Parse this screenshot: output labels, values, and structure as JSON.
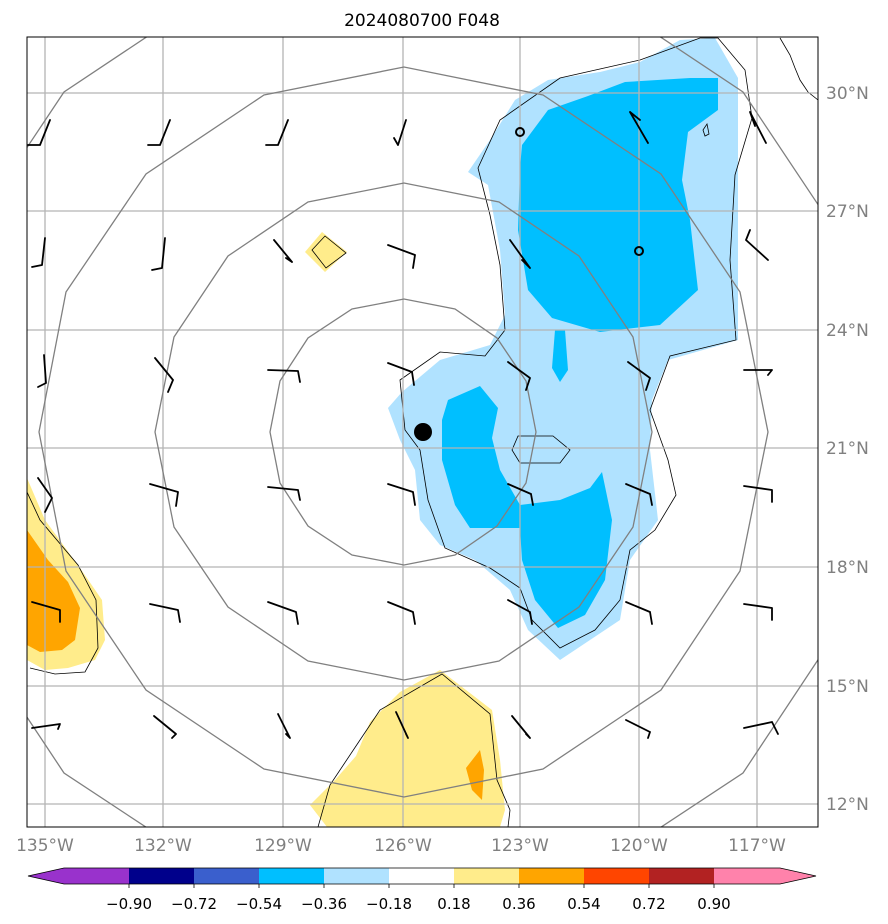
{
  "title": "2024080700 F048",
  "map": {
    "lon_labels": [
      "135°W",
      "132°W",
      "129°W",
      "126°W",
      "123°W",
      "120°W",
      "117°W"
    ],
    "lat_labels": [
      "30°N",
      "27°N",
      "24°N",
      "21°N",
      "18°N",
      "15°N",
      "12°N"
    ],
    "lon_range": [
      -135.5,
      -115.5
    ],
    "lat_range": [
      11.6,
      31.4
    ],
    "gridlines": true,
    "storm_center": {
      "lon": -125.5,
      "lat": 21.4
    }
  },
  "colorbar": {
    "tick_labels": [
      "−0.90",
      "−0.72",
      "−0.54",
      "−0.36",
      "−0.18",
      "0.18",
      "0.36",
      "0.54",
      "0.72",
      "0.90"
    ],
    "colors": [
      "#9932cc",
      "#00008b",
      "#3a5fcd",
      "#00bfff",
      "#b0e2ff",
      "#ffffff",
      "#ffec8b",
      "#ffa500",
      "#ff4500",
      "#b22222",
      "#ff82ab"
    ],
    "extend": "both"
  },
  "legend_colors": {
    "light_blue": "#b0e2ff",
    "blue": "#00bfff",
    "light_yellow": "#ffec8b",
    "orange": "#ffa500",
    "ring": "#808080",
    "grid": "#b4b4b4"
  }
}
